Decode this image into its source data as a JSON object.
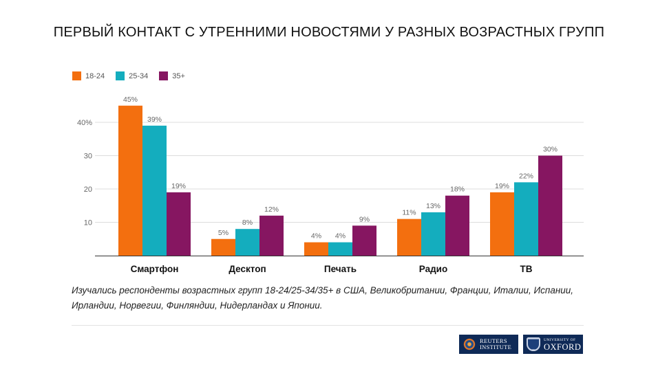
{
  "title": "ПЕРВЫЙ КОНТАКТ С УТРЕННИМИ НОВОСТЯМИ У РАЗНЫХ ВОЗРАСТНЫХ ГРУПП",
  "note": "Изучались респонденты возрастных групп 18-24/25-34/35+ в США, Великобритании, Франции, Италии, Испании, Ирландии, Норвегии, Финляндии, Нидерландах и Японии.",
  "logos": {
    "reuters": [
      "REUTERS",
      "INSTITUTE"
    ],
    "oxford": [
      "UNIVERSITY OF",
      "OXFORD"
    ]
  },
  "chart_data": {
    "type": "bar",
    "categories": [
      "Смартфон",
      "Десктоп",
      "Печать",
      "Радио",
      "ТВ"
    ],
    "series": [
      {
        "name": "18-24",
        "color": "#f36f0f",
        "values": [
          45,
          5,
          4,
          11,
          19
        ],
        "labels": [
          "45%",
          "5%",
          "4%",
          "11%",
          "19%"
        ]
      },
      {
        "name": "25-34",
        "color": "#14adbe",
        "values": [
          39,
          8,
          4,
          13,
          22
        ],
        "labels": [
          "39%",
          "8%",
          "4%",
          "13%",
          "22%"
        ]
      },
      {
        "name": "35+",
        "color": "#861661",
        "values": [
          19,
          12,
          9,
          18,
          30
        ],
        "labels": [
          "19%",
          "12%",
          "9%",
          "18%",
          "30%"
        ]
      }
    ],
    "y_ticks": [
      {
        "value": 10,
        "label": "10"
      },
      {
        "value": 20,
        "label": "20"
      },
      {
        "value": 30,
        "label": "30"
      },
      {
        "value": 40,
        "label": "40%"
      }
    ],
    "ylim": [
      0,
      45
    ],
    "grid": true,
    "legend_position": "top-left"
  }
}
